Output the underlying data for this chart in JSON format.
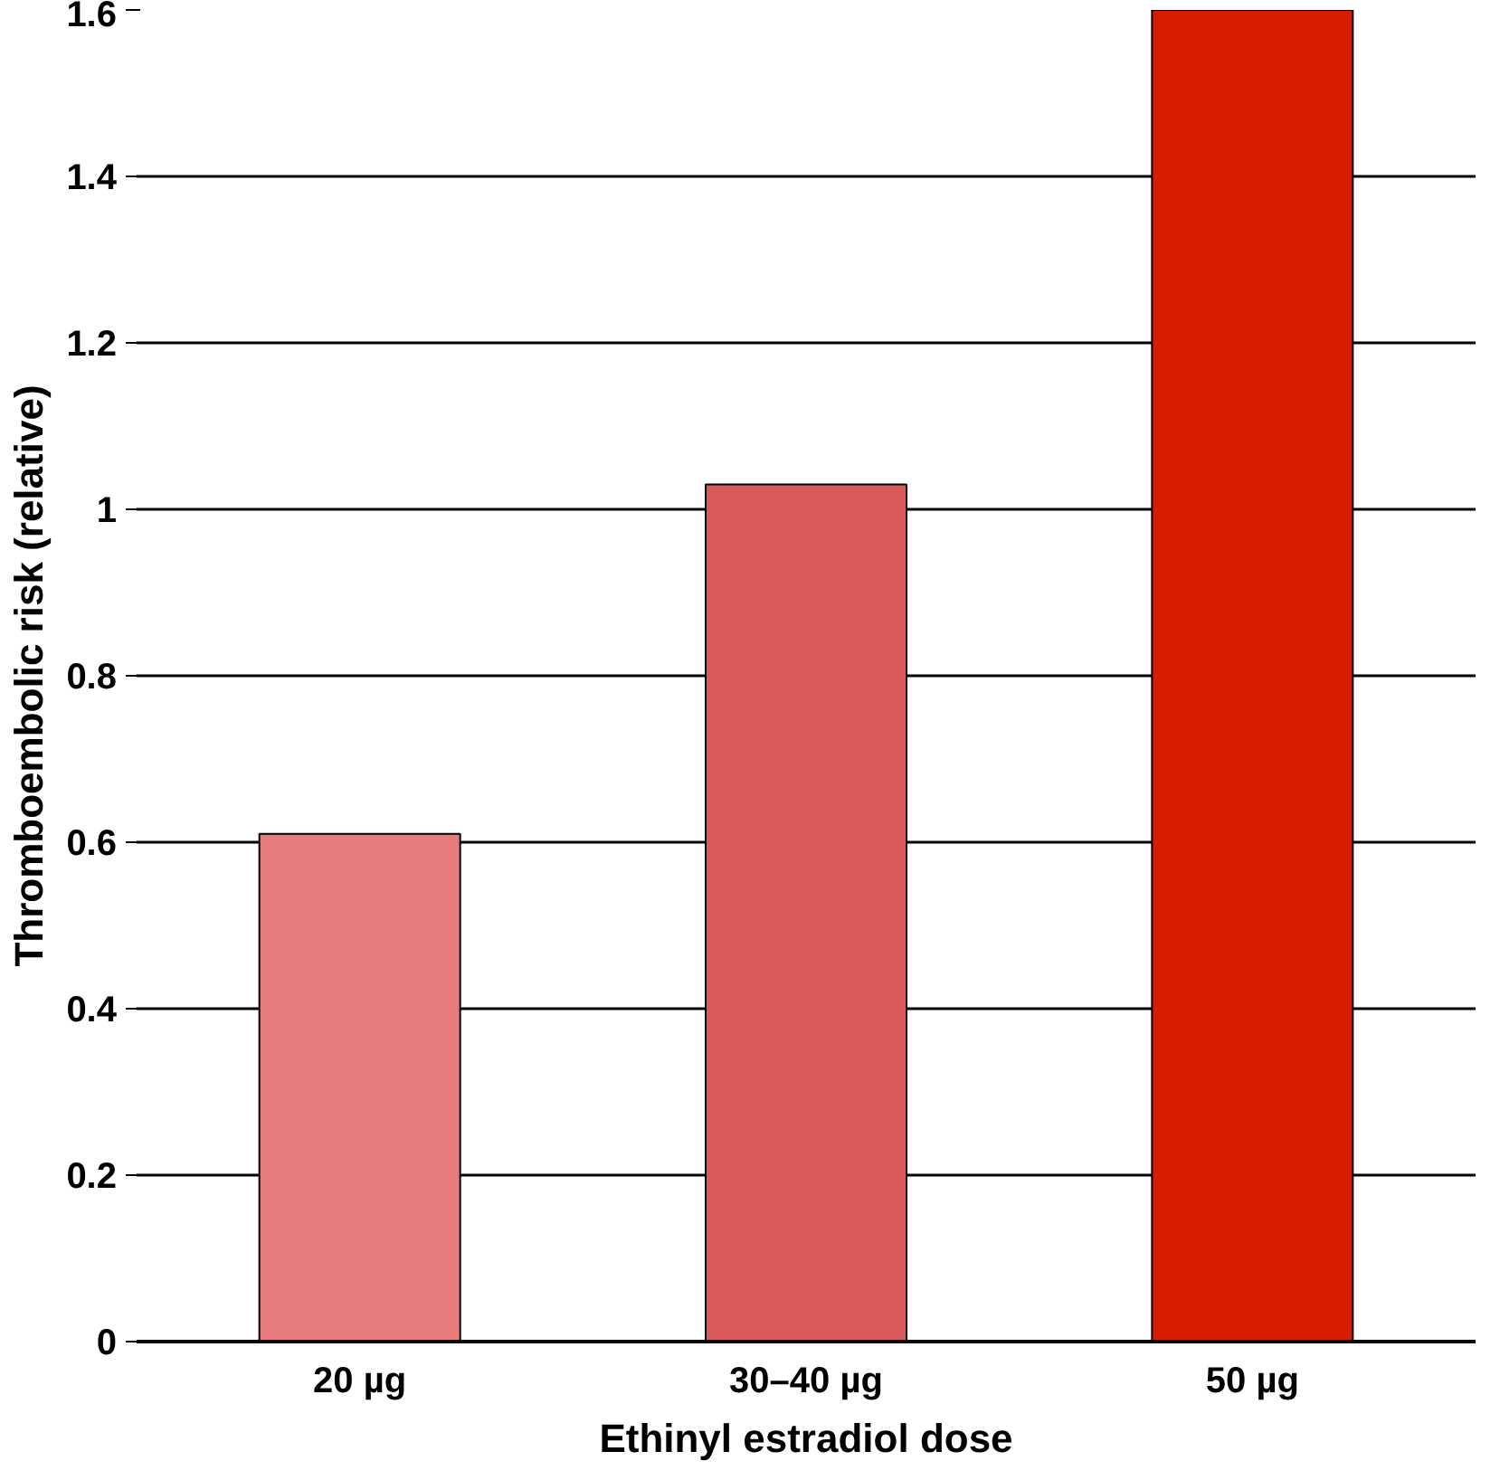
{
  "chart_data": {
    "type": "bar",
    "xlabel": "Ethinyl estradiol dose",
    "ylabel": "Thromboembolic risk (relative)",
    "categories": [
      "20 µg",
      "30–40 µg",
      "50 µg"
    ],
    "values": [
      0.61,
      1.03,
      1.6
    ],
    "colors": [
      "#e87c7c",
      "#d95a5a",
      "#d81c00"
    ],
    "ylim": [
      0,
      1.6
    ],
    "yticks": [
      0,
      0.2,
      0.4,
      0.6,
      0.8,
      1,
      1.2,
      1.4,
      1.6
    ],
    "grid": "y"
  }
}
